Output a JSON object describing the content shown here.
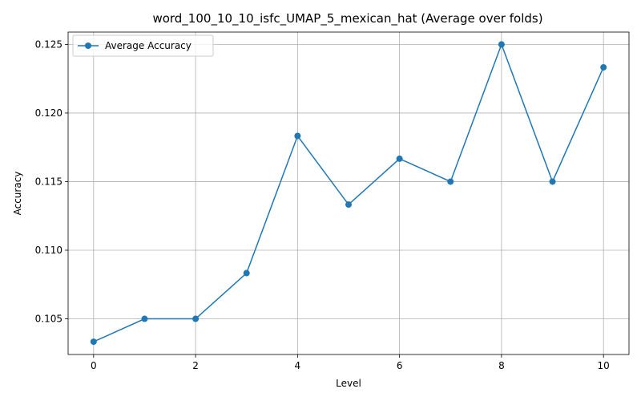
{
  "chart_data": {
    "type": "line",
    "title": "word_100_10_10_isfc_UMAP_5_mexican_hat (Average over folds)",
    "xlabel": "Level",
    "ylabel": "Accuracy",
    "x": [
      0,
      1,
      2,
      3,
      4,
      5,
      6,
      7,
      8,
      9,
      10
    ],
    "series": [
      {
        "name": "Average Accuracy",
        "color": "#1f77b4",
        "marker": "circle",
        "values": [
          0.10333,
          0.105,
          0.105,
          0.10833,
          0.11833,
          0.11333,
          0.11667,
          0.115,
          0.125,
          0.115,
          0.12333
        ]
      }
    ],
    "xlim": [
      -0.5,
      10.5
    ],
    "ylim": [
      0.1024,
      0.1259
    ],
    "xticks": [
      0,
      2,
      4,
      6,
      8,
      10
    ],
    "xtick_labels": [
      "0",
      "2",
      "4",
      "6",
      "8",
      "10"
    ],
    "yticks": [
      0.105,
      0.11,
      0.115,
      0.12,
      0.125
    ],
    "ytick_labels": [
      "0.105",
      "0.110",
      "0.115",
      "0.120",
      "0.125"
    ],
    "grid": true,
    "legend_position": "top-left"
  }
}
